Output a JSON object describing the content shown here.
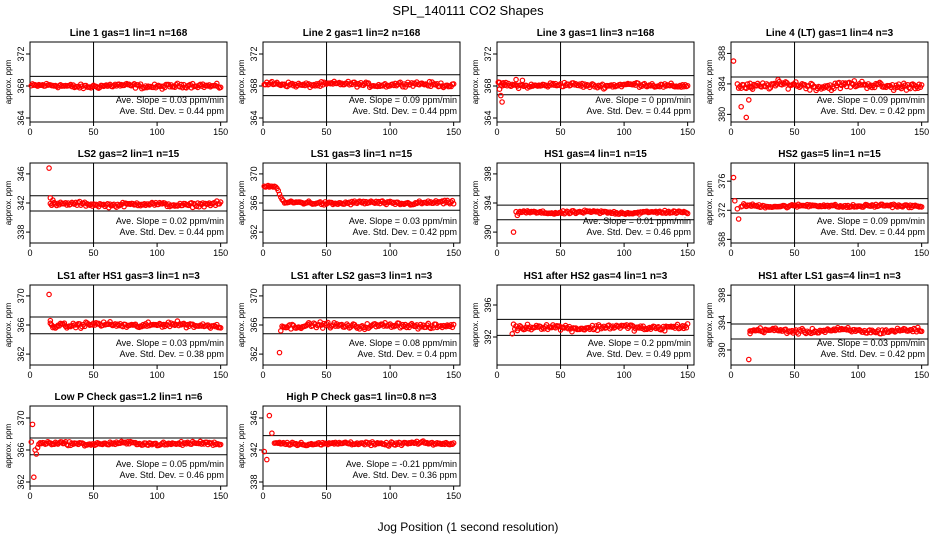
{
  "title": "SPL_140111  CO2 Shapes",
  "xlabel": "Jog Position (1 second resolution)",
  "chart_data": [
    {
      "type": "scatter",
      "title": "Line 1 gas=1 lin=1 n=168",
      "ylabel": "approx. ppm",
      "xlim": [
        0,
        155
      ],
      "ylim": [
        363.5,
        373.5
      ],
      "xticks": [
        0,
        50,
        100,
        150
      ],
      "yticks": [
        364,
        368,
        372
      ],
      "hlines": [
        369.2,
        366.7
      ],
      "vline": 50,
      "level": 368.0,
      "noise": 0.2,
      "x_start": 1,
      "outliers": [],
      "slope_label": "Ave. Slope = 0.03  ppm/min",
      "std_label": "Ave. Std. Dev. = 0.44  ppm"
    },
    {
      "type": "scatter",
      "title": "Line 2 gas=1 lin=2 n=168",
      "ylabel": "approx. ppm",
      "xlim": [
        0,
        155
      ],
      "ylim": [
        363.5,
        373.5
      ],
      "xticks": [
        0,
        50,
        100,
        150
      ],
      "yticks": [
        364,
        368,
        372
      ],
      "hlines": [
        369.4,
        366.8
      ],
      "vline": 50,
      "level": 368.2,
      "noise": 0.2,
      "x_start": 1,
      "outliers": [],
      "slope_label": "Ave. Slope = 0.09  ppm/min",
      "std_label": "Ave. Std. Dev. = 0.44  ppm"
    },
    {
      "type": "scatter",
      "title": "Line 3 gas=1 lin=3 n=168",
      "ylabel": "approx. ppm",
      "xlim": [
        0,
        155
      ],
      "ylim": [
        363.5,
        373.5
      ],
      "xticks": [
        0,
        50,
        100,
        150
      ],
      "yticks": [
        364,
        368,
        372
      ],
      "hlines": [
        369.3,
        366.9
      ],
      "vline": 50,
      "level": 368.1,
      "noise": 0.2,
      "x_start": 1,
      "outliers": [
        [
          2,
          367.6
        ],
        [
          3,
          366.8
        ],
        [
          4,
          366.0
        ],
        [
          5,
          368.4
        ],
        [
          15,
          368.8
        ],
        [
          20,
          368.7
        ]
      ],
      "slope_label": "Ave. Slope = 0  ppm/min",
      "std_label": "Ave. Std. Dev. = 0.44  ppm"
    },
    {
      "type": "scatter",
      "title": "Line 4 (LT) gas=1 lin=4 n=3",
      "ylabel": "approx. ppm",
      "xlim": [
        0,
        155
      ],
      "ylim": [
        379.0,
        389.5
      ],
      "xticks": [
        0,
        50,
        100,
        150
      ],
      "yticks": [
        380,
        384,
        388
      ],
      "hlines": [
        384.9,
        382.6
      ],
      "vline": 50,
      "level": 383.8,
      "noise": 0.35,
      "x_start": 5,
      "outliers": [
        [
          2,
          387.0
        ],
        [
          8,
          381.0
        ],
        [
          12,
          379.6
        ],
        [
          14,
          381.9
        ],
        [
          16,
          383.5
        ]
      ],
      "slope_label": "Ave. Slope = 0.09  ppm/min",
      "std_label": "Ave. Std. Dev. = 0.42  ppm"
    },
    {
      "type": "scatter",
      "title": "LS2 gas=2 lin=1 n=15",
      "ylabel": "approx. ppm",
      "xlim": [
        0,
        155
      ],
      "ylim": [
        336.5,
        347.5
      ],
      "xticks": [
        0,
        50,
        100,
        150
      ],
      "yticks": [
        338,
        342,
        346
      ],
      "hlines": [
        343.0,
        340.9
      ],
      "vline": 50,
      "level": 341.8,
      "noise": 0.2,
      "x_start": 16,
      "outliers": [
        [
          15,
          346.8
        ],
        [
          16,
          342.7
        ],
        [
          18,
          342.4
        ]
      ],
      "slope_label": "Ave. Slope = 0.02  ppm/min",
      "std_label": "Ave. Std. Dev. = 0.44  ppm"
    },
    {
      "type": "scatter",
      "title": "LS1 gas=3 lin=1 n=15",
      "ylabel": "approx. ppm",
      "xlim": [
        0,
        155
      ],
      "ylim": [
        360.5,
        371.5
      ],
      "xticks": [
        0,
        50,
        100,
        150
      ],
      "yticks": [
        362,
        366,
        370
      ],
      "hlines": [
        367.0,
        365.0
      ],
      "vline": 50,
      "level": 366.0,
      "noise": 0.18,
      "x_start": 17,
      "outliers": [
        [
          1,
          368.3
        ],
        [
          2,
          368.2
        ],
        [
          3,
          368.3
        ],
        [
          4,
          368.4
        ],
        [
          5,
          368.2
        ],
        [
          6,
          368.3
        ],
        [
          7,
          368.3
        ],
        [
          8,
          368.2
        ],
        [
          9,
          368.3
        ],
        [
          10,
          368.2
        ],
        [
          11,
          368.0
        ],
        [
          12,
          367.7
        ],
        [
          13,
          367.2
        ],
        [
          14,
          366.8
        ],
        [
          15,
          366.5
        ],
        [
          16,
          366.3
        ]
      ],
      "slope_label": "Ave. Slope = 0.03  ppm/min",
      "std_label": "Ave. Std. Dev. = 0.42  ppm"
    },
    {
      "type": "scatter",
      "title": "HS1 gas=4 lin=1 n=15",
      "ylabel": "approx. ppm",
      "xlim": [
        0,
        155
      ],
      "ylim": [
        388.5,
        399.5
      ],
      "xticks": [
        0,
        50,
        100,
        150
      ],
      "yticks": [
        390,
        394,
        398
      ],
      "hlines": [
        393.7,
        391.7
      ],
      "vline": 50,
      "level": 392.7,
      "noise": 0.15,
      "x_start": 17,
      "outliers": [
        [
          13,
          390.0
        ],
        [
          15,
          392.8
        ],
        [
          16,
          392.3
        ]
      ],
      "slope_label": "Ave. Slope = 0.01  ppm/min",
      "std_label": "Ave. Std. Dev. = 0.46  ppm"
    },
    {
      "type": "scatter",
      "title": "HS2 gas=5 lin=1 n=15",
      "ylabel": "approx. ppm",
      "xlim": [
        0,
        155
      ],
      "ylim": [
        367.5,
        378.5
      ],
      "xticks": [
        0,
        50,
        100,
        150
      ],
      "yticks": [
        368,
        372,
        376
      ],
      "hlines": [
        373.6,
        371.6
      ],
      "vline": 50,
      "level": 372.6,
      "noise": 0.15,
      "x_start": 8,
      "outliers": [
        [
          2,
          376.5
        ],
        [
          3,
          373.3
        ],
        [
          5,
          372.2
        ],
        [
          6,
          370.8
        ]
      ],
      "slope_label": "Ave. Slope = 0.09  ppm/min",
      "std_label": "Ave. Std. Dev. = 0.44  ppm"
    },
    {
      "type": "scatter",
      "title": "LS1 after HS1 gas=3 lin=1 n=3",
      "ylabel": "approx. ppm",
      "xlim": [
        0,
        155
      ],
      "ylim": [
        360.5,
        371.5
      ],
      "xticks": [
        0,
        50,
        100,
        150
      ],
      "yticks": [
        362,
        366,
        370
      ],
      "hlines": [
        367.1,
        364.8
      ],
      "vline": 50,
      "level": 366.0,
      "noise": 0.25,
      "x_start": 16,
      "outliers": [
        [
          15,
          370.2
        ],
        [
          16,
          366.6
        ]
      ],
      "slope_label": "Ave. Slope = 0.03  ppm/min",
      "std_label": "Ave. Std. Dev. = 0.38  ppm"
    },
    {
      "type": "scatter",
      "title": "LS1 after LS2 gas=3 lin=1 n=3",
      "ylabel": "approx. ppm",
      "xlim": [
        0,
        155
      ],
      "ylim": [
        360.5,
        371.5
      ],
      "xticks": [
        0,
        50,
        100,
        150
      ],
      "yticks": [
        362,
        366,
        370
      ],
      "hlines": [
        367.0,
        364.8
      ],
      "vline": 50,
      "level": 365.9,
      "noise": 0.25,
      "x_start": 15,
      "outliers": [
        [
          13,
          362.2
        ],
        [
          14,
          365.2
        ]
      ],
      "slope_label": "Ave. Slope = 0.08  ppm/min",
      "std_label": "Ave. Std. Dev. = 0.4  ppm"
    },
    {
      "type": "scatter",
      "title": "HS1 after HS2 gas=4 lin=1 n=3",
      "ylabel": "approx. ppm",
      "xlim": [
        0,
        155
      ],
      "ylim": [
        388.5,
        398.5
      ],
      "xticks": [
        0,
        50,
        100,
        150
      ],
      "yticks": [
        388,
        392,
        396
      ],
      "hlines": [
        394.2,
        392.2
      ],
      "vline": 50,
      "level": 393.2,
      "noise": 0.25,
      "x_start": 15,
      "outliers": [
        [
          12,
          392.4
        ],
        [
          13,
          393.6
        ],
        [
          14,
          393.0
        ]
      ],
      "slope_label": "Ave. Slope = 0.2  ppm/min",
      "std_label": "Ave. Std. Dev. = 0.49  ppm"
    },
    {
      "type": "scatter",
      "title": "HS1 after LS1 gas=4 lin=1 n=3",
      "ylabel": "approx. ppm",
      "xlim": [
        0,
        155
      ],
      "ylim": [
        387.8,
        399.5
      ],
      "xticks": [
        0,
        50,
        100,
        150
      ],
      "yticks": [
        390,
        394,
        398
      ],
      "hlines": [
        393.8,
        391.6
      ],
      "vline": 50,
      "level": 392.8,
      "noise": 0.25,
      "x_start": 15,
      "outliers": [
        [
          14,
          388.6
        ],
        [
          15,
          392.4
        ]
      ],
      "slope_label": "Ave. Slope = 0.03  ppm/min",
      "std_label": "Ave. Std. Dev. = 0.42  ppm"
    },
    {
      "type": "scatter",
      "title": "Low P Check gas=1.2 lin=1 n=6",
      "ylabel": "approx. ppm",
      "xlim": [
        0,
        155
      ],
      "ylim": [
        361.5,
        371.5
      ],
      "xticks": [
        0,
        50,
        100,
        150
      ],
      "yticks": [
        362,
        366,
        370
      ],
      "hlines": [
        367.5,
        365.4
      ],
      "vline": 50,
      "level": 366.8,
      "noise": 0.15,
      "x_start": 7,
      "outliers": [
        [
          1,
          367.0
        ],
        [
          2,
          369.2
        ],
        [
          3,
          362.6
        ],
        [
          4,
          366.0
        ],
        [
          5,
          365.5
        ],
        [
          6,
          366.3
        ]
      ],
      "slope_label": "Ave. Slope = 0.05  ppm/min",
      "std_label": "Ave. Std. Dev. = 0.46  ppm"
    },
    {
      "type": "scatter",
      "title": "High P Check gas=1 lin=0.8 n=3",
      "ylabel": "approx. ppm",
      "xlim": [
        0,
        155
      ],
      "ylim": [
        337.5,
        347.5
      ],
      "xticks": [
        0,
        50,
        100,
        150
      ],
      "yticks": [
        338,
        342,
        346
      ],
      "hlines": [
        343.8,
        341.6
      ],
      "vline": 50,
      "level": 342.8,
      "noise": 0.15,
      "x_start": 9,
      "outliers": [
        [
          1,
          341.8
        ],
        [
          3,
          340.8
        ],
        [
          5,
          346.3
        ],
        [
          7,
          344.1
        ]
      ],
      "slope_label": "Ave. Slope = -0.21  ppm/min",
      "std_label": "Ave. Std. Dev. = 0.36  ppm"
    }
  ]
}
